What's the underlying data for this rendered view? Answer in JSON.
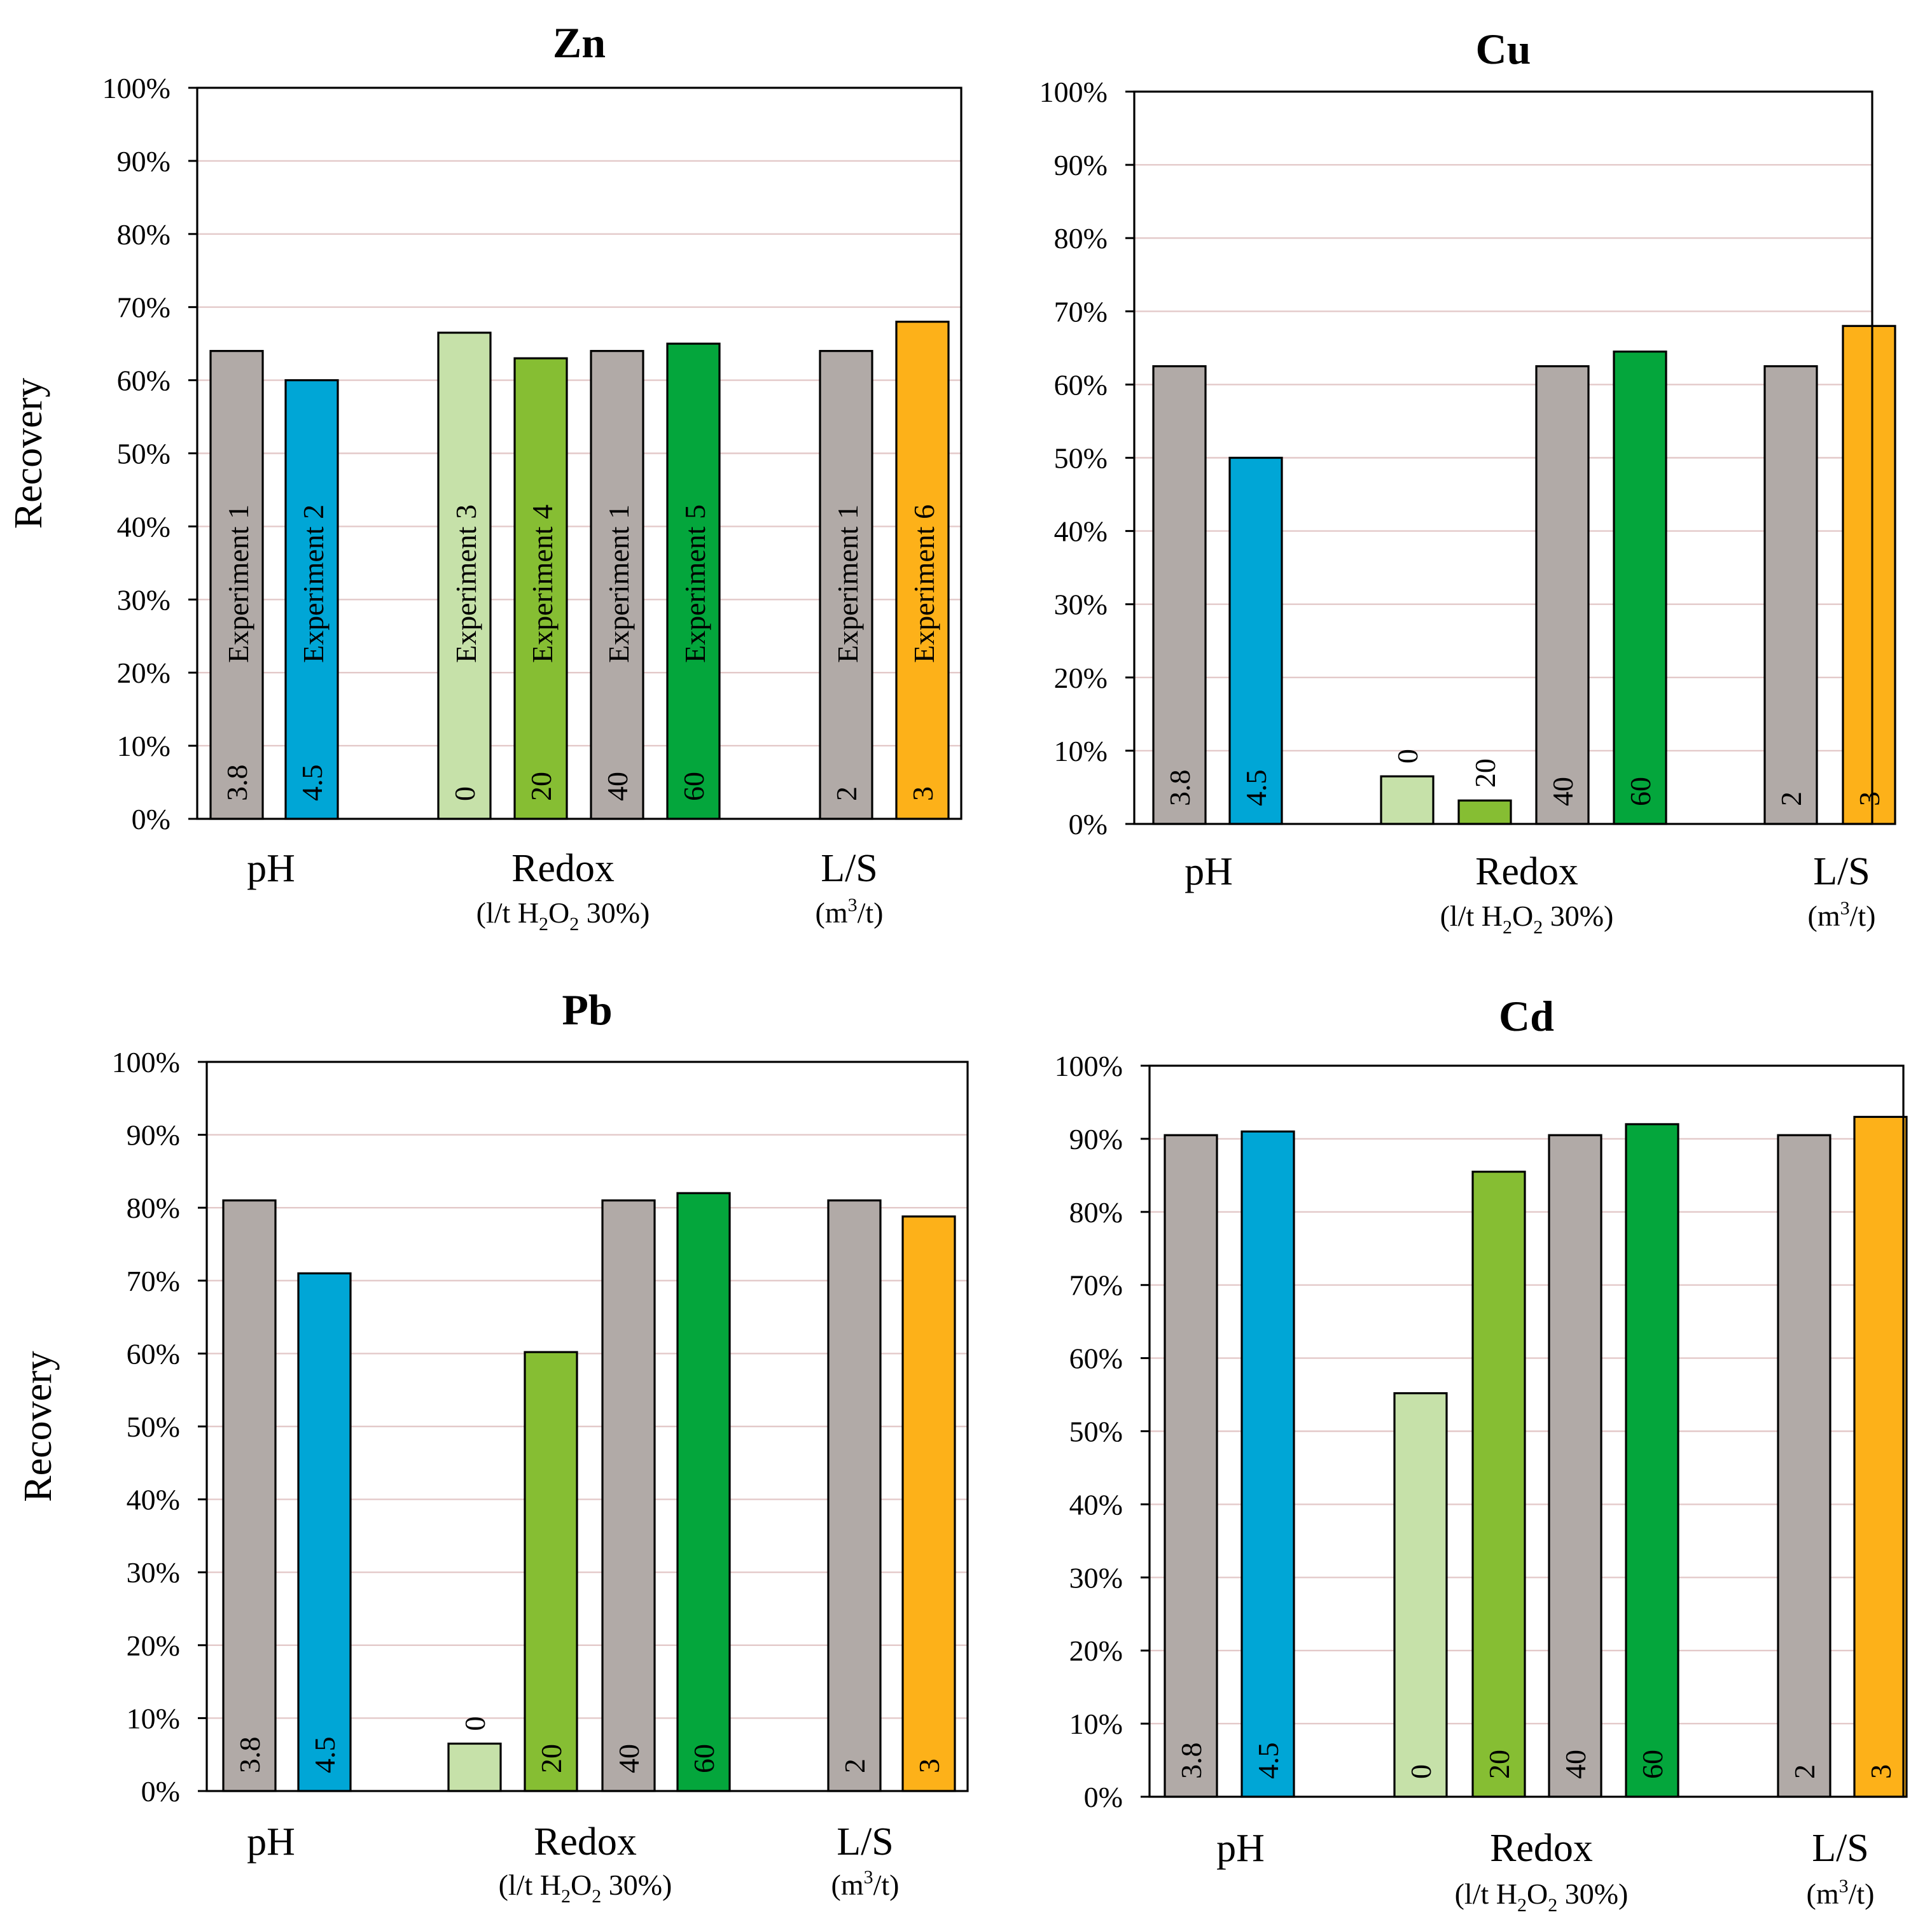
{
  "colors": {
    "gray": "#b1aaa7",
    "blue": "#00a6d6",
    "light_green": "#c6e1a9",
    "lime": "#86be33",
    "green": "#04a63c",
    "orange": "#fdb119",
    "grid": "#e3c9c9"
  },
  "chart_data": [
    {
      "type": "bar",
      "title": "Zn",
      "ylabel": "Recovery",
      "ylim": [
        0,
        100
      ],
      "yticks": [
        "0%",
        "10%",
        "20%",
        "30%",
        "40%",
        "50%",
        "60%",
        "70%",
        "80%",
        "90%",
        "100%"
      ],
      "groups": [
        {
          "label": "pH",
          "sublabel": null
        },
        {
          "label": "Redox",
          "sublabel": "(l/t H2O2 30%)"
        },
        {
          "label": "L/S",
          "sublabel": "(m3/t)"
        }
      ],
      "bars": [
        {
          "group": 0,
          "value": 64,
          "color": "gray",
          "label": "3.8",
          "name": "Experiment 1"
        },
        {
          "group": 0,
          "value": 60,
          "color": "blue",
          "label": "4.5",
          "name": "Experiment 2"
        },
        {
          "group": 1,
          "value": 66.5,
          "color": "light_green",
          "label": "0",
          "name": "Experiment 3"
        },
        {
          "group": 1,
          "value": 63,
          "color": "lime",
          "label": "20",
          "name": "Experiment 4"
        },
        {
          "group": 1,
          "value": 64,
          "color": "gray",
          "label": "40",
          "name": "Experiment 1"
        },
        {
          "group": 1,
          "value": 65,
          "color": "green",
          "label": "60",
          "name": "Experiment 5"
        },
        {
          "group": 2,
          "value": 64,
          "color": "gray",
          "label": "2",
          "name": "Experiment 1"
        },
        {
          "group": 2,
          "value": 68,
          "color": "orange",
          "label": "3",
          "name": "Experiment 6"
        }
      ]
    },
    {
      "type": "bar",
      "title": "Cu",
      "ylabel": "",
      "ylim": [
        0,
        100
      ],
      "yticks": [
        "0%",
        "10%",
        "20%",
        "30%",
        "40%",
        "50%",
        "60%",
        "70%",
        "80%",
        "90%",
        "100%"
      ],
      "groups": [
        {
          "label": "pH",
          "sublabel": null
        },
        {
          "label": "Redox",
          "sublabel": "(l/t H2O2 30%)"
        },
        {
          "label": "L/S",
          "sublabel": "(m3/t)"
        }
      ],
      "bars": [
        {
          "group": 0,
          "value": 62.5,
          "color": "gray",
          "label": "3.8"
        },
        {
          "group": 0,
          "value": 50,
          "color": "blue",
          "label": "4.5"
        },
        {
          "group": 1,
          "value": 6.5,
          "color": "light_green",
          "label": "0"
        },
        {
          "group": 1,
          "value": 3.2,
          "color": "lime",
          "label": "20"
        },
        {
          "group": 1,
          "value": 62.5,
          "color": "gray",
          "label": "40"
        },
        {
          "group": 1,
          "value": 64.5,
          "color": "green",
          "label": "60"
        },
        {
          "group": 2,
          "value": 62.5,
          "color": "gray",
          "label": "2"
        },
        {
          "group": 2,
          "value": 68,
          "color": "orange",
          "label": "3"
        }
      ]
    },
    {
      "type": "bar",
      "title": "Pb",
      "ylabel": "Recovery",
      "ylim": [
        0,
        100
      ],
      "yticks": [
        "0%",
        "10%",
        "20%",
        "30%",
        "40%",
        "50%",
        "60%",
        "70%",
        "80%",
        "90%",
        "100%"
      ],
      "groups": [
        {
          "label": "pH",
          "sublabel": null
        },
        {
          "label": "Redox",
          "sublabel": "(l/t H2O2 30%)"
        },
        {
          "label": "L/S",
          "sublabel": "(m3/t)"
        }
      ],
      "bars": [
        {
          "group": 0,
          "value": 81,
          "color": "gray",
          "label": "3.8"
        },
        {
          "group": 0,
          "value": 71,
          "color": "blue",
          "label": "4.5"
        },
        {
          "group": 1,
          "value": 6.5,
          "color": "light_green",
          "label": "0"
        },
        {
          "group": 1,
          "value": 60.2,
          "color": "lime",
          "label": "20"
        },
        {
          "group": 1,
          "value": 81,
          "color": "gray",
          "label": "40"
        },
        {
          "group": 1,
          "value": 82,
          "color": "green",
          "label": "60"
        },
        {
          "group": 2,
          "value": 81,
          "color": "gray",
          "label": "2"
        },
        {
          "group": 2,
          "value": 78.8,
          "color": "orange",
          "label": "3"
        }
      ]
    },
    {
      "type": "bar",
      "title": "Cd",
      "ylabel": "",
      "ylim": [
        0,
        100
      ],
      "yticks": [
        "0%",
        "10%",
        "20%",
        "30%",
        "40%",
        "50%",
        "60%",
        "70%",
        "80%",
        "90%",
        "100%"
      ],
      "groups": [
        {
          "label": "pH",
          "sublabel": null
        },
        {
          "label": "Redox",
          "sublabel": "(l/t H2O2 30%)"
        },
        {
          "label": "L/S",
          "sublabel": "(m3/t)"
        }
      ],
      "bars": [
        {
          "group": 0,
          "value": 90.5,
          "color": "gray",
          "label": "3.8"
        },
        {
          "group": 0,
          "value": 91,
          "color": "blue",
          "label": "4.5"
        },
        {
          "group": 1,
          "value": 55.2,
          "color": "light_green",
          "label": "0"
        },
        {
          "group": 1,
          "value": 85.5,
          "color": "lime",
          "label": "20"
        },
        {
          "group": 1,
          "value": 90.5,
          "color": "gray",
          "label": "40"
        },
        {
          "group": 1,
          "value": 92,
          "color": "green",
          "label": "60"
        },
        {
          "group": 2,
          "value": 90.5,
          "color": "gray",
          "label": "2"
        },
        {
          "group": 2,
          "value": 93,
          "color": "orange",
          "label": "3"
        }
      ]
    }
  ]
}
